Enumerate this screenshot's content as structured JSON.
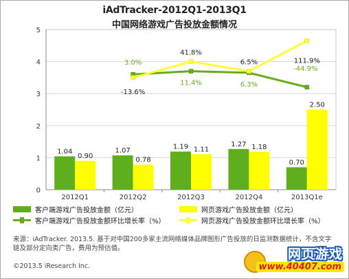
{
  "chart_data": {
    "type": "bar",
    "title": "iAdTracker-2012Q1-2013Q1",
    "subtitle": "中国网络游戏广告投放金额情况",
    "categories": [
      "2012Q1",
      "2012Q2",
      "2012Q3",
      "2012Q4",
      "2013Q1e"
    ],
    "ylim": [
      0,
      5
    ],
    "yticks": [
      "0",
      "1",
      "2",
      "3",
      "4",
      "5"
    ],
    "grid": true,
    "series": [
      {
        "name": "客户端游戏广告投放金额（亿元）",
        "kind": "bar",
        "color": "#5fae1e",
        "values": [
          1.04,
          1.07,
          1.19,
          1.27,
          0.7
        ],
        "labels": [
          "1.04",
          "1.07",
          "1.19",
          "1.27",
          "0.70"
        ]
      },
      {
        "name": "网页游戏广告投放金额（亿元）",
        "kind": "bar",
        "color": "#ffff00",
        "values": [
          0.9,
          0.78,
          1.11,
          1.18,
          2.5
        ],
        "labels": [
          "0.90",
          "0.78",
          "1.11",
          "1.18",
          "2.50"
        ]
      },
      {
        "name": "客户端游戏广告投放金额环比增长率（%）",
        "kind": "line",
        "color": "#6aaa1e",
        "values": [
          null,
          3.6,
          3.7,
          3.65,
          3.2
        ],
        "labels": [
          "",
          "3.0%",
          "11.4%",
          "6.3%",
          "-44.9%"
        ]
      },
      {
        "name": "网页游戏广告投放金额环比增长率（%）",
        "kind": "line",
        "color": "#ffff33",
        "values": [
          null,
          3.5,
          4.0,
          3.7,
          4.65
        ],
        "labels": [
          "",
          "-13.6%",
          "41.8%",
          "6.5%",
          "111.9%"
        ]
      }
    ]
  },
  "footer": {
    "source": "来源：iAdTracker. 2013.5. 基于对中国200多家主流网络媒体品牌图形广告投放的日监测数据统计，不含文字链及部分定向类广告，费用为预估值。",
    "copyright": "©2013.5 iResearch Inc."
  },
  "logo": {
    "top": "网页游戏",
    "bottom": "www.40407.com"
  }
}
